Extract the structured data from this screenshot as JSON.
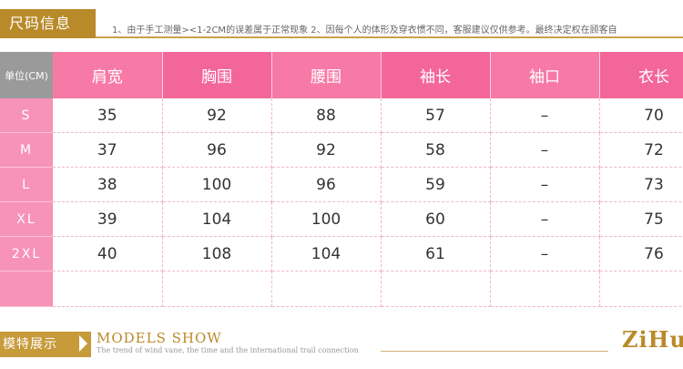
{
  "header": {
    "tab_label": "尺码信息",
    "note": "1、由于手工测量><1-2CM的误差属于正常现象  2、因每个人的体形及穿衣惯不同，客服建议仅供参考。最终决定权在顾客自"
  },
  "table": {
    "unit_label": "单位(CM)",
    "columns": [
      "肩宽",
      "胸围",
      "腰围",
      "袖长",
      "袖口",
      "衣长"
    ],
    "rows": [
      {
        "size": "S",
        "cells": [
          "35",
          "92",
          "88",
          "57",
          "–",
          "70"
        ]
      },
      {
        "size": "M",
        "cells": [
          "37",
          "96",
          "92",
          "58",
          "–",
          "72"
        ]
      },
      {
        "size": "L",
        "cells": [
          "38",
          "100",
          "96",
          "59",
          "–",
          "73"
        ]
      },
      {
        "size": "XL",
        "cells": [
          "39",
          "104",
          "100",
          "60",
          "–",
          "75"
        ]
      },
      {
        "size": "2XL",
        "cells": [
          "40",
          "108",
          "104",
          "61",
          "–",
          "76"
        ]
      },
      {
        "size": "",
        "cells": [
          "",
          "",
          "",
          "",
          "",
          ""
        ]
      }
    ]
  },
  "models": {
    "tab_label": "模特展示",
    "title": "MODELS SHOW",
    "subtitle": "The trend of wind vane, the time and the international trail connection",
    "brand": "ZiHu"
  },
  "colors": {
    "gold": "#b98a2a",
    "pink_header": "#f77aa6",
    "pink_size": "#f792b8",
    "unit_gray": "#9a9a9a"
  }
}
